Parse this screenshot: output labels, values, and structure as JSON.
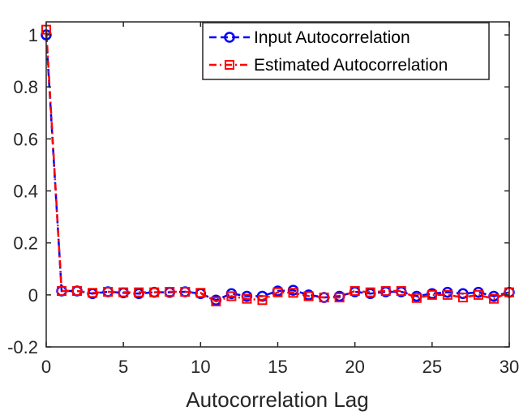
{
  "chart_data": {
    "type": "line",
    "title": "",
    "xlabel": "Autocorrelation Lag",
    "ylabel": "",
    "xlim": [
      0,
      30
    ],
    "ylim": [
      -0.2,
      1.05
    ],
    "xticks": [
      "0",
      "5",
      "10",
      "15",
      "20",
      "25",
      "30"
    ],
    "yticks": [
      "-0.2",
      "0",
      "0.2",
      "0.4",
      "0.6",
      "0.8",
      "1"
    ],
    "grid": false,
    "legend_position": "top-right",
    "x": [
      0,
      1,
      2,
      3,
      4,
      5,
      6,
      7,
      8,
      9,
      10,
      11,
      12,
      13,
      14,
      15,
      16,
      17,
      18,
      19,
      20,
      21,
      22,
      23,
      24,
      25,
      26,
      27,
      28,
      29,
      30
    ],
    "series": [
      {
        "name": "Input Autocorrelation",
        "color": "#0000ff",
        "marker": "circle",
        "line_style": "dashed",
        "values": [
          1.0,
          0.015,
          0.015,
          0.005,
          0.012,
          0.008,
          0.005,
          0.01,
          0.01,
          0.012,
          0.005,
          -0.02,
          0.005,
          -0.005,
          -0.005,
          0.015,
          0.018,
          0.0,
          -0.01,
          -0.005,
          0.012,
          0.005,
          0.012,
          0.012,
          -0.005,
          0.005,
          0.01,
          0.005,
          0.01,
          -0.005,
          0.01
        ]
      },
      {
        "name": "Estimated Autocorrelation",
        "color": "#ff0000",
        "marker": "square",
        "line_style": "dash-dot",
        "values": [
          1.02,
          0.015,
          0.015,
          0.008,
          0.012,
          0.01,
          0.01,
          0.01,
          0.012,
          0.012,
          0.008,
          -0.025,
          -0.005,
          -0.015,
          -0.02,
          0.01,
          0.008,
          -0.005,
          -0.01,
          -0.01,
          0.015,
          0.01,
          0.015,
          0.015,
          -0.012,
          0.0,
          0.0,
          -0.01,
          0.0,
          -0.015,
          0.01
        ]
      }
    ]
  }
}
